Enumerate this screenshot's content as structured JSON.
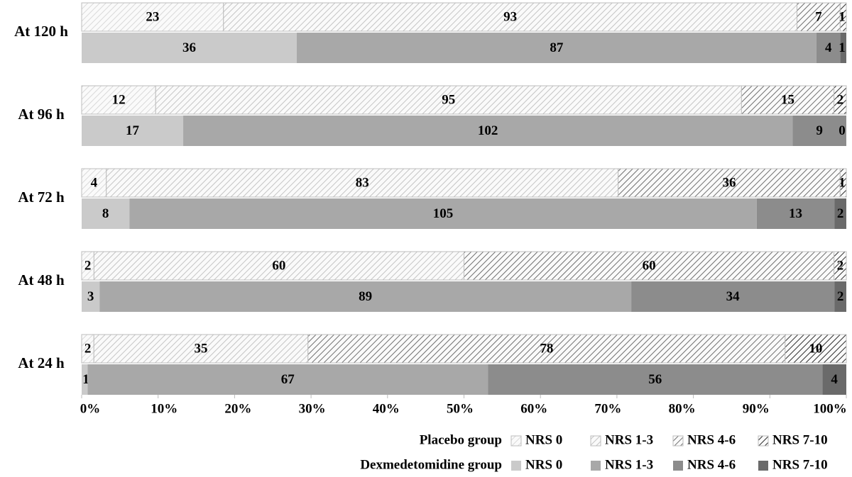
{
  "chart_data": {
    "type": "stacked-percent-bar",
    "categories": [
      "At 120 h",
      "At 96 h",
      "At 72 h",
      "At 48 h",
      "At 24 h"
    ],
    "groups": [
      {
        "name": "Placebo group",
        "hatch": true,
        "series": [
          {
            "name": "NRS 0",
            "color": "#d9d9d9",
            "values": [
              23,
              12,
              4,
              2,
              2
            ]
          },
          {
            "name": "NRS 1-3",
            "color": "#c4c4c4",
            "values": [
              93,
              95,
              83,
              60,
              35
            ]
          },
          {
            "name": "NRS 4-6",
            "color": "#6f6f6f",
            "values": [
              7,
              15,
              36,
              60,
              78
            ]
          },
          {
            "name": "NRS 7-10",
            "color": "#2e2e2e",
            "values": [
              1,
              2,
              1,
              2,
              10
            ]
          }
        ]
      },
      {
        "name": "Dexmedetomidine group",
        "hatch": false,
        "series": [
          {
            "name": "NRS 0",
            "color": "#cacaca",
            "values": [
              36,
              17,
              8,
              3,
              1
            ]
          },
          {
            "name": "NRS 1-3",
            "color": "#a8a8a8",
            "values": [
              87,
              102,
              105,
              89,
              67
            ]
          },
          {
            "name": "NRS 4-6",
            "color": "#8c8c8c",
            "values": [
              4,
              9,
              13,
              34,
              56
            ]
          },
          {
            "name": "NRS 7-10",
            "color": "#6a6a6a",
            "values": [
              1,
              0,
              2,
              2,
              4
            ]
          }
        ]
      }
    ],
    "xlim": [
      0,
      100
    ],
    "xticks": [
      {
        "value": 0,
        "label": "0%"
      },
      {
        "value": 10,
        "label": "10%"
      },
      {
        "value": 20,
        "label": "20%"
      },
      {
        "value": 30,
        "label": "30%"
      },
      {
        "value": 40,
        "label": "40%"
      },
      {
        "value": 50,
        "label": "50%"
      },
      {
        "value": 60,
        "label": "60%"
      },
      {
        "value": 70,
        "label": "70%"
      },
      {
        "value": 80,
        "label": "80%"
      },
      {
        "value": 90,
        "label": "90%"
      },
      {
        "value": 100,
        "label": "100%"
      }
    ]
  }
}
